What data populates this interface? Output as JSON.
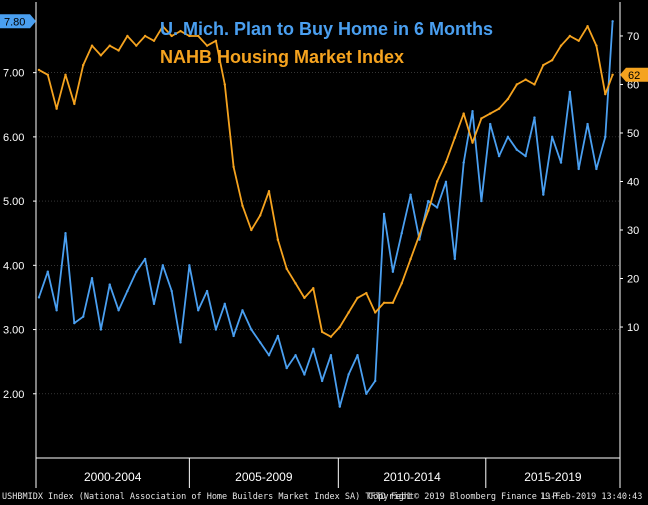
{
  "chart_data": {
    "type": "line",
    "title_lines": [
      "U. Mich. Plan to Buy Home in 6 Months",
      "NAHB Housing Market Index"
    ],
    "x_period_labels": [
      "2000-2004",
      "2005-2009",
      "2010-2014",
      "2015-2019"
    ],
    "left_axis": {
      "ticks": [
        "2.00",
        "3.00",
        "4.00",
        "5.00",
        "6.00",
        "7.00"
      ],
      "ylim": [
        1.0,
        8.1
      ],
      "last_value_label": "7.80"
    },
    "right_axis": {
      "ticks": [
        "10",
        "20",
        "30",
        "40",
        "50",
        "60",
        "70"
      ],
      "ylim": [
        -17,
        77
      ],
      "last_value_label": "62"
    },
    "grid": true,
    "colors": {
      "umich": "#4a9ff0",
      "nahb": "#f5a31f",
      "axis": "#ffffff",
      "grid": "#555555"
    },
    "series": [
      {
        "key": "umich",
        "axis": "left",
        "x": [
          1999.6,
          1999.9,
          2000.2,
          2000.5,
          2000.8,
          2001.1,
          2001.4,
          2001.7,
          2002.0,
          2002.3,
          2002.6,
          2002.9,
          2003.2,
          2003.5,
          2003.8,
          2004.1,
          2004.4,
          2004.7,
          2005.0,
          2005.3,
          2005.6,
          2005.9,
          2006.2,
          2006.5,
          2006.8,
          2007.1,
          2007.4,
          2007.7,
          2008.0,
          2008.3,
          2008.6,
          2008.9,
          2009.2,
          2009.5,
          2009.8,
          2010.1,
          2010.4,
          2010.7,
          2011.0,
          2011.3,
          2011.6,
          2011.9,
          2012.2,
          2012.5,
          2012.8,
          2013.1,
          2013.4,
          2013.7,
          2014.0,
          2014.3,
          2014.6,
          2014.9,
          2015.2,
          2015.5,
          2015.8,
          2016.1,
          2016.4,
          2016.7,
          2017.0,
          2017.3,
          2017.6,
          2017.9,
          2018.2,
          2018.5,
          2018.8,
          2019.05
        ],
        "values": [
          3.5,
          3.9,
          3.3,
          4.5,
          3.1,
          3.2,
          3.8,
          3.0,
          3.7,
          3.3,
          3.6,
          3.9,
          4.1,
          3.4,
          4.0,
          3.6,
          2.8,
          4.0,
          3.3,
          3.6,
          3.0,
          3.4,
          2.9,
          3.3,
          3.0,
          2.8,
          2.6,
          2.9,
          2.4,
          2.6,
          2.3,
          2.7,
          2.2,
          2.6,
          1.8,
          2.3,
          2.6,
          2.0,
          2.2,
          4.8,
          3.9,
          4.5,
          5.1,
          4.4,
          5.0,
          4.9,
          5.3,
          4.1,
          5.6,
          6.4,
          5.0,
          6.2,
          5.7,
          6.0,
          5.8,
          5.7,
          6.3,
          5.1,
          6.0,
          5.6,
          6.7,
          5.5,
          6.2,
          5.5,
          6.0,
          7.8
        ]
      },
      {
        "key": "nahb",
        "axis": "right",
        "x": [
          1999.6,
          1999.9,
          2000.2,
          2000.5,
          2000.8,
          2001.1,
          2001.4,
          2001.7,
          2002.0,
          2002.3,
          2002.6,
          2002.9,
          2003.2,
          2003.5,
          2003.8,
          2004.1,
          2004.4,
          2004.7,
          2005.0,
          2005.3,
          2005.6,
          2005.9,
          2006.2,
          2006.5,
          2006.8,
          2007.1,
          2007.4,
          2007.7,
          2008.0,
          2008.3,
          2008.6,
          2008.9,
          2009.2,
          2009.5,
          2009.8,
          2010.1,
          2010.4,
          2010.7,
          2011.0,
          2011.3,
          2011.6,
          2011.9,
          2012.2,
          2012.5,
          2012.8,
          2013.1,
          2013.4,
          2013.7,
          2014.0,
          2014.3,
          2014.6,
          2014.9,
          2015.2,
          2015.5,
          2015.8,
          2016.1,
          2016.4,
          2016.7,
          2017.0,
          2017.3,
          2017.6,
          2017.9,
          2018.2,
          2018.5,
          2018.8,
          2019.05
        ],
        "values": [
          63,
          62,
          55,
          62,
          56,
          64,
          68,
          66,
          68,
          67,
          70,
          68,
          70,
          69,
          72,
          70,
          71,
          70,
          70,
          68,
          69,
          60,
          43,
          35,
          30,
          33,
          38,
          28,
          22,
          19,
          16,
          18,
          9,
          8,
          10,
          13,
          16,
          17,
          13,
          15,
          15,
          19,
          24,
          29,
          34,
          40,
          44,
          49,
          54,
          48,
          53,
          54,
          55,
          57,
          60,
          61,
          60,
          64,
          65,
          68,
          70,
          69,
          72,
          68,
          58,
          62
        ]
      }
    ]
  },
  "footer": {
    "left": "USHBMIDX Index (National Association of Home Builders Market Index SA) TFTD Feb1",
    "middle": "Copyright© 2019 Bloomberg Finance L.P.",
    "right": "19-Feb-2019 13:40:43"
  }
}
